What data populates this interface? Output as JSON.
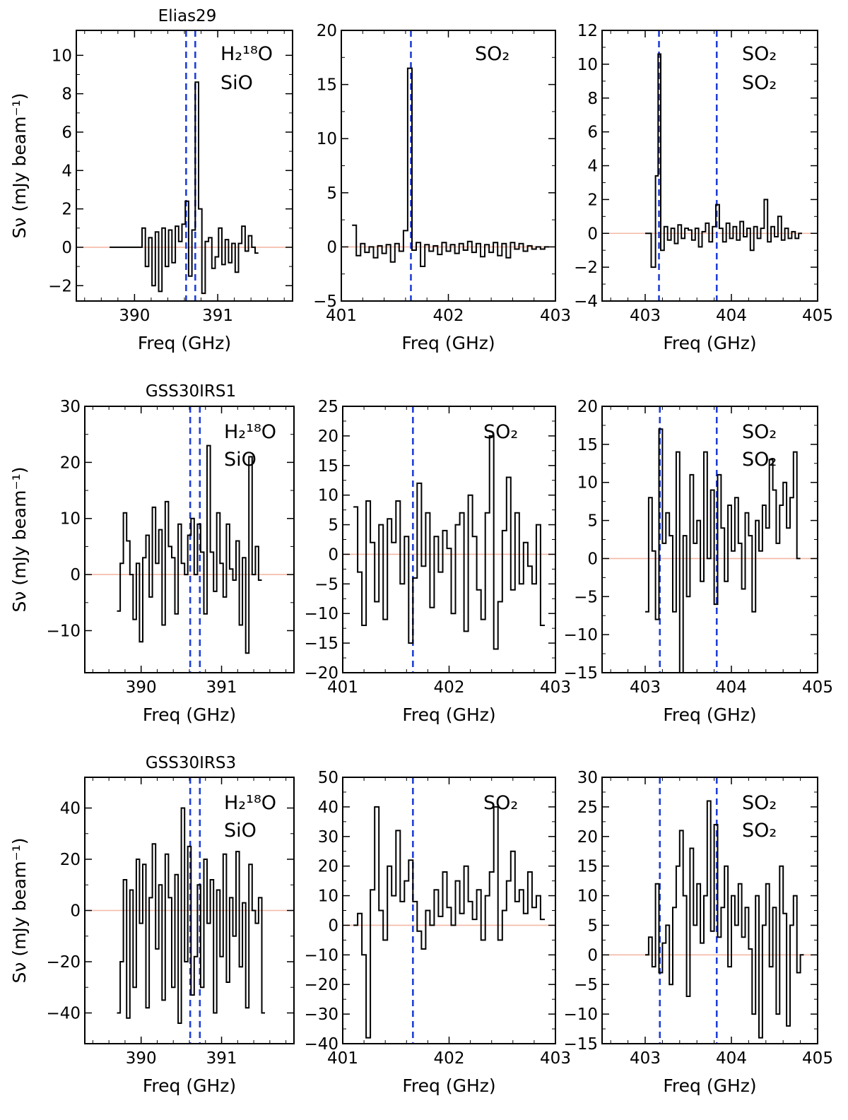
{
  "figure": {
    "ylabel": "Sν (mJy beam⁻¹)",
    "xlabel": "Freq (GHz)"
  },
  "rows": [
    {
      "source": "Elias29"
    },
    {
      "source": "GSS30IRS1"
    },
    {
      "source": "GSS30IRS3"
    }
  ],
  "species": {
    "col1": {
      "line1": "H₂¹⁸O",
      "line2": "SiO"
    },
    "col2": {
      "line1": "SO₂"
    },
    "col3": {
      "line1": "SO₂",
      "line2": "SO₂"
    }
  },
  "chart_data": [
    {
      "type": "line",
      "source": "Elias29",
      "panel": "Elias29 390-391 GHz",
      "title": "Elias29",
      "xlabel": "Freq (GHz)",
      "ylabel": "Sν (mJy beam⁻¹)",
      "xlim": [
        389.3,
        391.9
      ],
      "ylim": [
        -2.8,
        11.3
      ],
      "xticks": [
        390,
        391
      ],
      "yticks": [
        -2,
        0,
        2,
        4,
        6,
        8,
        10
      ],
      "vlines": [
        390.62,
        390.73
      ],
      "species": [
        "H₂¹⁸O",
        "SiO"
      ],
      "x": [
        389.7,
        390.09,
        390.13,
        390.17,
        390.21,
        390.25,
        390.29,
        390.33,
        390.37,
        390.41,
        390.45,
        390.49,
        390.53,
        390.57,
        390.61,
        390.65,
        390.69,
        390.73,
        390.77,
        390.81,
        390.85,
        390.89,
        390.93,
        390.97,
        391.01,
        391.05,
        391.09,
        391.13,
        391.17,
        391.21,
        391.25,
        391.29,
        391.33,
        391.37,
        391.41,
        391.45
      ],
      "y": [
        0.0,
        1.0,
        -1.0,
        0.5,
        -2.0,
        0.8,
        -2.3,
        1.0,
        -1.0,
        0.9,
        -0.8,
        1.1,
        0.3,
        1.2,
        2.4,
        -1.5,
        0.9,
        8.6,
        2.0,
        -2.4,
        0.3,
        0.5,
        -1.1,
        -0.5,
        1.0,
        -0.9,
        0.4,
        -0.8,
        0.2,
        -1.3,
        0.2,
        1.1,
        -0.2,
        0.6,
        0.0,
        -0.3
      ]
    },
    {
      "type": "line",
      "source": "Elias29",
      "panel": "Elias29 401-403 GHz",
      "title": "",
      "xlabel": "Freq (GHz)",
      "ylabel": "",
      "xlim": [
        401,
        403
      ],
      "ylim": [
        -5,
        20
      ],
      "xticks": [
        401,
        402,
        403
      ],
      "yticks": [
        -5,
        0,
        5,
        10,
        15,
        20
      ],
      "vlines": [
        401.65
      ],
      "species": [
        "SO₂"
      ],
      "x": [
        401.1,
        401.14,
        401.18,
        401.22,
        401.26,
        401.3,
        401.34,
        401.38,
        401.42,
        401.46,
        401.5,
        401.54,
        401.58,
        401.62,
        401.66,
        401.7,
        401.74,
        401.78,
        401.82,
        401.86,
        401.9,
        401.94,
        401.98,
        402.02,
        402.06,
        402.1,
        402.14,
        402.18,
        402.22,
        402.26,
        402.3,
        402.34,
        402.38,
        402.42,
        402.46,
        402.5,
        402.54,
        402.58,
        402.62,
        402.66,
        402.7,
        402.74,
        402.78,
        402.82,
        402.86,
        402.9
      ],
      "y": [
        2.0,
        -0.8,
        0.3,
        -0.5,
        0.0,
        -1.0,
        0.1,
        -0.6,
        0.2,
        -1.4,
        0.3,
        -0.4,
        1.5,
        16.5,
        -0.3,
        0.4,
        -1.8,
        0.2,
        -0.4,
        0.1,
        -0.7,
        0.4,
        -0.4,
        0.2,
        -0.6,
        0.3,
        -0.3,
        0.5,
        -0.5,
        0.3,
        -0.9,
        0.2,
        -0.5,
        0.4,
        -0.8,
        0.3,
        -1.0,
        0.4,
        -0.2,
        0.3,
        -0.4,
        0.1,
        -0.2,
        0.0,
        -0.2,
        0.0
      ]
    },
    {
      "type": "line",
      "source": "Elias29",
      "panel": "Elias29 403-405 GHz",
      "title": "",
      "xlabel": "Freq (GHz)",
      "ylabel": "",
      "xlim": [
        402.5,
        405
      ],
      "ylim": [
        -4,
        12
      ],
      "xticks": [
        403,
        404,
        405
      ],
      "yticks": [
        -4,
        -2,
        0,
        2,
        4,
        6,
        8,
        10,
        12
      ],
      "vlines": [
        403.16,
        403.83
      ],
      "species": [
        "SO₂",
        "SO₂"
      ],
      "x": [
        403.0,
        403.07,
        403.12,
        403.15,
        403.18,
        403.22,
        403.26,
        403.3,
        403.34,
        403.38,
        403.42,
        403.46,
        403.5,
        403.54,
        403.58,
        403.62,
        403.66,
        403.7,
        403.74,
        403.78,
        403.82,
        403.86,
        403.9,
        403.94,
        403.98,
        404.02,
        404.06,
        404.1,
        404.14,
        404.18,
        404.22,
        404.26,
        404.3,
        404.34,
        404.38,
        404.42,
        404.46,
        404.5,
        404.54,
        404.58,
        404.62,
        404.66,
        404.7,
        404.74,
        404.78
      ],
      "y": [
        0.0,
        -2.0,
        3.4,
        10.6,
        -1.0,
        0.4,
        -0.4,
        0.3,
        -0.6,
        0.5,
        -0.3,
        0.3,
        0.2,
        -0.4,
        0.3,
        -0.8,
        0.1,
        0.6,
        -0.5,
        0.4,
        1.7,
        0.3,
        -0.5,
        0.6,
        -0.3,
        0.4,
        -0.4,
        0.7,
        -0.2,
        0.3,
        -1.0,
        0.4,
        -0.3,
        0.3,
        2.0,
        -0.5,
        0.4,
        -0.2,
        1.0,
        -0.4,
        0.3,
        -0.3,
        0.1,
        -0.3,
        0.0
      ]
    },
    {
      "type": "line",
      "source": "GSS30IRS1",
      "panel": "GSS30IRS1 390-391 GHz",
      "title": "GSS30IRS1",
      "xlabel": "Freq (GHz)",
      "ylabel": "Sν (mJy beam⁻¹)",
      "xlim": [
        389.3,
        391.9
      ],
      "ylim": [
        -17.5,
        30
      ],
      "xticks": [
        390,
        391
      ],
      "yticks": [
        -10,
        0,
        10,
        20,
        30
      ],
      "vlines": [
        390.61,
        390.73
      ],
      "species": [
        "H₂¹⁸O",
        "SiO"
      ],
      "x": [
        389.7,
        389.74,
        389.78,
        389.82,
        389.86,
        389.9,
        389.94,
        389.98,
        390.02,
        390.06,
        390.1,
        390.14,
        390.18,
        390.22,
        390.26,
        390.3,
        390.34,
        390.38,
        390.42,
        390.46,
        390.5,
        390.54,
        390.58,
        390.62,
        390.66,
        390.7,
        390.74,
        390.78,
        390.82,
        390.86,
        390.9,
        390.94,
        390.98,
        391.02,
        391.06,
        391.1,
        391.14,
        391.18,
        391.22,
        391.26,
        391.3,
        391.34,
        391.38,
        391.42,
        391.46
      ],
      "y": [
        -6.5,
        2.0,
        11.0,
        6.0,
        0.0,
        -8.0,
        2.0,
        -12.0,
        3.0,
        7.0,
        -4.0,
        12.0,
        2.0,
        8.0,
        -9.0,
        13.0,
        5.0,
        3.0,
        -7.0,
        9.0,
        2.0,
        0.0,
        7.0,
        10.0,
        0.0,
        9.0,
        4.0,
        -7.0,
        23.0,
        4.0,
        -3.0,
        11.0,
        2.0,
        -4.0,
        9.0,
        1.0,
        -1.0,
        6.0,
        -9.0,
        3.0,
        -14.0,
        21.0,
        0.0,
        5.0,
        -1.0
      ]
    },
    {
      "type": "line",
      "source": "GSS30IRS1",
      "panel": "GSS30IRS1 401-403 GHz",
      "title": "",
      "xlabel": "Freq (GHz)",
      "ylabel": "",
      "xlim": [
        401,
        403
      ],
      "ylim": [
        -20,
        25
      ],
      "xticks": [
        401,
        402,
        403
      ],
      "yticks": [
        -20,
        -15,
        -10,
        -5,
        0,
        5,
        10,
        15,
        20,
        25
      ],
      "vlines": [
        401.66
      ],
      "species": [
        "SO₂"
      ],
      "x": [
        401.1,
        401.14,
        401.18,
        401.22,
        401.26,
        401.3,
        401.34,
        401.38,
        401.42,
        401.46,
        401.5,
        401.54,
        401.58,
        401.62,
        401.66,
        401.7,
        401.74,
        401.78,
        401.82,
        401.86,
        401.9,
        401.94,
        401.98,
        402.02,
        402.06,
        402.1,
        402.14,
        402.18,
        402.22,
        402.26,
        402.3,
        402.34,
        402.38,
        402.42,
        402.46,
        402.5,
        402.54,
        402.58,
        402.62,
        402.66,
        402.7,
        402.74,
        402.78,
        402.82,
        402.86
      ],
      "y": [
        8.0,
        -3.0,
        -12.0,
        9.0,
        2.0,
        -8.0,
        5.0,
        -11.0,
        6.0,
        2.0,
        9.0,
        -5.0,
        3.0,
        -15.0,
        -4.0,
        12.0,
        -2.0,
        7.0,
        -9.0,
        3.0,
        -3.0,
        4.0,
        1.0,
        -10.0,
        5.0,
        7.0,
        -13.0,
        10.0,
        3.0,
        -6.0,
        -11.0,
        7.0,
        20.0,
        -16.0,
        -8.0,
        4.0,
        13.0,
        -6.0,
        7.0,
        -5.0,
        2.0,
        -2.0,
        -5.0,
        5.0,
        -12.0
      ]
    },
    {
      "type": "line",
      "source": "GSS30IRS1",
      "panel": "GSS30IRS1 403-405 GHz",
      "title": "",
      "xlabel": "Freq (GHz)",
      "ylabel": "",
      "xlim": [
        402.5,
        405
      ],
      "ylim": [
        -15,
        20
      ],
      "xticks": [
        403,
        404,
        405
      ],
      "yticks": [
        -15,
        -10,
        -5,
        0,
        5,
        10,
        15,
        20
      ],
      "vlines": [
        403.17,
        403.83
      ],
      "species": [
        "SO₂",
        "SO₂"
      ],
      "x": [
        403.0,
        403.04,
        403.08,
        403.12,
        403.16,
        403.2,
        403.24,
        403.28,
        403.32,
        403.36,
        403.4,
        403.44,
        403.48,
        403.52,
        403.56,
        403.6,
        403.64,
        403.68,
        403.72,
        403.76,
        403.8,
        403.84,
        403.88,
        403.92,
        403.96,
        404.0,
        404.04,
        404.08,
        404.12,
        404.16,
        404.2,
        404.24,
        404.28,
        404.32,
        404.36,
        404.4,
        404.44,
        404.48,
        404.52,
        404.56,
        404.6,
        404.64,
        404.68,
        404.72,
        404.76
      ],
      "y": [
        -7.0,
        8.0,
        1.0,
        -8.0,
        17.0,
        2.0,
        6.0,
        3.0,
        -7.0,
        14.0,
        -15.0,
        3.0,
        -5.0,
        11.0,
        2.0,
        5.0,
        -3.0,
        14.0,
        0.0,
        9.0,
        -6.0,
        11.0,
        4.0,
        -3.0,
        7.0,
        1.0,
        8.0,
        2.0,
        -4.0,
        6.0,
        3.0,
        -7.0,
        5.0,
        1.0,
        7.0,
        4.0,
        13.0,
        9.0,
        2.0,
        7.0,
        10.0,
        4.0,
        8.0,
        14.0,
        0.0
      ]
    },
    {
      "type": "line",
      "source": "GSS30IRS3",
      "panel": "GSS30IRS3 390-391 GHz",
      "title": "GSS30IRS3",
      "xlabel": "Freq (GHz)",
      "ylabel": "Sν (mJy beam⁻¹)",
      "xlim": [
        389.3,
        391.9
      ],
      "ylim": [
        -52,
        52
      ],
      "xticks": [
        390,
        391
      ],
      "yticks": [
        -40,
        -20,
        0,
        20,
        40
      ],
      "vlines": [
        390.61,
        390.73
      ],
      "species": [
        "H₂¹⁸O",
        "SiO"
      ],
      "x": [
        389.7,
        389.74,
        389.78,
        389.82,
        389.86,
        389.9,
        389.94,
        389.98,
        390.02,
        390.06,
        390.1,
        390.14,
        390.18,
        390.22,
        390.26,
        390.3,
        390.34,
        390.38,
        390.42,
        390.46,
        390.5,
        390.54,
        390.58,
        390.62,
        390.66,
        390.7,
        390.74,
        390.78,
        390.82,
        390.86,
        390.9,
        390.94,
        390.98,
        391.02,
        391.06,
        391.1,
        391.14,
        391.18,
        391.22,
        391.26,
        391.3,
        391.34,
        391.38,
        391.42,
        391.46,
        391.5
      ],
      "y": [
        -40.0,
        -20.0,
        12.0,
        -42.0,
        8.0,
        -30.0,
        20.0,
        -5.0,
        18.0,
        -38.0,
        5.0,
        26.0,
        -15.0,
        10.0,
        -35.0,
        22.0,
        5.0,
        -30.0,
        14.0,
        -44.0,
        40.0,
        -20.0,
        25.0,
        -33.0,
        -18.0,
        10.0,
        -30.0,
        20.0,
        -5.0,
        12.0,
        -40.0,
        8.0,
        -18.0,
        22.0,
        -28.0,
        5.0,
        -10.0,
        23.0,
        -22.0,
        3.0,
        -38.0,
        18.0,
        0.0,
        -5.0,
        5.0,
        -40.0
      ]
    },
    {
      "type": "line",
      "source": "GSS30IRS3",
      "panel": "GSS30IRS3 401-403 GHz",
      "title": "",
      "xlabel": "Freq (GHz)",
      "ylabel": "",
      "xlim": [
        401,
        403
      ],
      "ylim": [
        -40,
        50
      ],
      "xticks": [
        401,
        402,
        403
      ],
      "yticks": [
        -40,
        -30,
        -20,
        -10,
        0,
        10,
        20,
        30,
        40,
        50
      ],
      "vlines": [
        401.66
      ],
      "species": [
        "SO₂"
      ],
      "x": [
        401.1,
        401.14,
        401.18,
        401.22,
        401.26,
        401.3,
        401.34,
        401.38,
        401.42,
        401.46,
        401.5,
        401.54,
        401.58,
        401.62,
        401.66,
        401.7,
        401.74,
        401.78,
        401.82,
        401.86,
        401.9,
        401.94,
        401.98,
        402.02,
        402.06,
        402.1,
        402.14,
        402.18,
        402.22,
        402.26,
        402.3,
        402.34,
        402.38,
        402.42,
        402.46,
        402.5,
        402.54,
        402.58,
        402.62,
        402.66,
        402.7,
        402.74,
        402.78,
        402.82,
        402.86
      ],
      "y": [
        0.0,
        4.0,
        -10.0,
        -38.0,
        12.0,
        40.0,
        5.0,
        -5.0,
        20.0,
        10.0,
        32.0,
        8.0,
        15.0,
        22.0,
        8.0,
        -2.0,
        -8.0,
        5.0,
        0.0,
        12.0,
        3.0,
        18.0,
        6.0,
        0.0,
        15.0,
        4.0,
        20.0,
        8.0,
        2.0,
        12.0,
        -5.0,
        10.0,
        18.0,
        40.0,
        -5.0,
        5.0,
        15.0,
        25.0,
        8.0,
        12.0,
        4.0,
        18.0,
        6.0,
        10.0,
        2.0
      ]
    },
    {
      "type": "line",
      "source": "GSS30IRS3",
      "panel": "GSS30IRS3 403-405 GHz",
      "title": "",
      "xlabel": "Freq (GHz)",
      "ylabel": "",
      "xlim": [
        402.5,
        405
      ],
      "ylim": [
        -15,
        30
      ],
      "xticks": [
        403,
        404,
        405
      ],
      "yticks": [
        -15,
        -10,
        -5,
        0,
        5,
        10,
        15,
        20,
        25,
        30
      ],
      "vlines": [
        403.17,
        403.83
      ],
      "species": [
        "SO₂",
        "SO₂"
      ],
      "x": [
        403.0,
        403.04,
        403.08,
        403.12,
        403.16,
        403.2,
        403.24,
        403.28,
        403.32,
        403.36,
        403.4,
        403.44,
        403.48,
        403.52,
        403.56,
        403.6,
        403.64,
        403.68,
        403.72,
        403.76,
        403.8,
        403.84,
        403.88,
        403.92,
        403.96,
        404.0,
        404.04,
        404.08,
        404.12,
        404.16,
        404.2,
        404.24,
        404.28,
        404.32,
        404.36,
        404.4,
        404.44,
        404.48,
        404.52,
        404.56,
        404.6,
        404.64,
        404.68,
        404.72,
        404.76,
        404.8
      ],
      "y": [
        0.0,
        3.0,
        -2.0,
        12.0,
        -3.0,
        2.0,
        5.0,
        -5.0,
        8.0,
        15.0,
        21.0,
        10.0,
        -7.0,
        18.0,
        5.0,
        12.0,
        2.0,
        10.0,
        26.0,
        4.0,
        22.0,
        3.0,
        8.0,
        15.0,
        -2.0,
        10.0,
        5.0,
        12.0,
        3.0,
        8.0,
        1.0,
        -10.0,
        10.0,
        -14.0,
        5.0,
        12.0,
        -2.0,
        8.0,
        -10.0,
        15.0,
        7.0,
        -12.0,
        5.0,
        10.0,
        -3.0,
        0.0
      ]
    }
  ]
}
